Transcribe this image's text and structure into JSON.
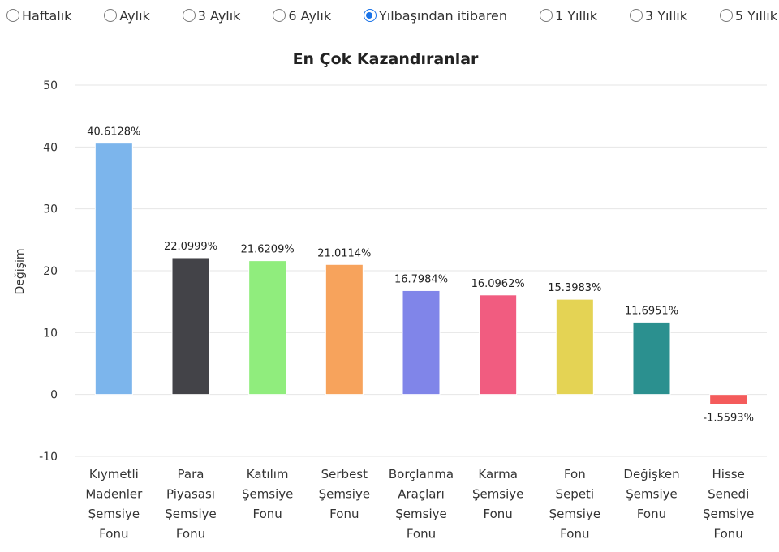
{
  "filters": {
    "options": [
      "Haftalık",
      "Aylık",
      "3 Aylık",
      "6 Aylık",
      "Yılbaşından itibaren",
      "1 Yıllık",
      "3 Yıllık",
      "5 Yıllık"
    ],
    "selected_index": 4
  },
  "chart_data": {
    "type": "bar",
    "title": "En Çok Kazandıranlar",
    "xlabel": "",
    "ylabel": "Değişim",
    "ylim": [
      -10,
      50
    ],
    "yticks": [
      -10,
      0,
      10,
      20,
      30,
      40,
      50
    ],
    "grid": true,
    "categories": [
      [
        "Kıymetli",
        "Madenler",
        "Şemsiye",
        "Fonu"
      ],
      [
        "Para",
        "Piyasası",
        "Şemsiye",
        "Fonu"
      ],
      [
        "Katılım",
        "Şemsiye",
        "Fonu"
      ],
      [
        "Serbest",
        "Şemsiye",
        "Fonu"
      ],
      [
        "Borçlanma",
        "Araçları",
        "Şemsiye",
        "Fonu"
      ],
      [
        "Karma",
        "Şemsiye",
        "Fonu"
      ],
      [
        "Fon",
        "Sepeti",
        "Şemsiye",
        "Fonu"
      ],
      [
        "Değişken",
        "Şemsiye",
        "Fonu"
      ],
      [
        "Hisse",
        "Senedi",
        "Şemsiye",
        "Fonu"
      ]
    ],
    "values": [
      40.6128,
      22.0999,
      21.6209,
      21.0114,
      16.7984,
      16.0962,
      15.3983,
      11.6951,
      -1.5593
    ],
    "value_labels": [
      "40.6128%",
      "22.0999%",
      "21.6209%",
      "21.0114%",
      "16.7984%",
      "16.0962%",
      "15.3983%",
      "11.6951%",
      "-1.5593%"
    ],
    "colors": [
      "#7cb5ec",
      "#434348",
      "#90ed7d",
      "#f7a35c",
      "#8085e9",
      "#f15c80",
      "#e4d354",
      "#2b908f",
      "#f45b5b"
    ]
  }
}
